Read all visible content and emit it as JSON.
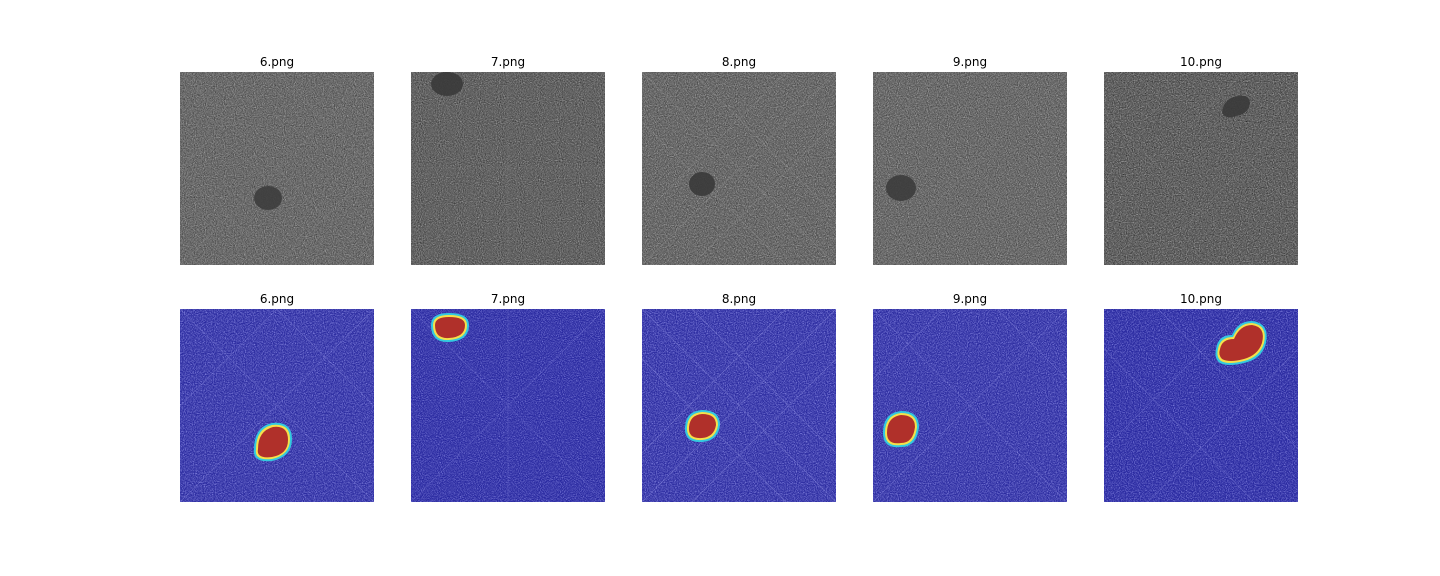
{
  "figure": {
    "rows": [
      {
        "kind": "grayscale-scan",
        "panels": [
          {
            "title": "6.png"
          },
          {
            "title": "7.png"
          },
          {
            "title": "8.png"
          },
          {
            "title": "9.png"
          },
          {
            "title": "10.png"
          }
        ]
      },
      {
        "kind": "jet-overlay-segmentation",
        "panels": [
          {
            "title": "6.png"
          },
          {
            "title": "7.png"
          },
          {
            "title": "8.png"
          },
          {
            "title": "9.png"
          },
          {
            "title": "10.png"
          }
        ]
      }
    ],
    "colors": {
      "background": "#ffffff",
      "gray_dark": "#2a2a2a",
      "gray_light": "#d0d0d0",
      "overlay_dark": "#1f1f8c",
      "overlay_light": "#9c9ce6",
      "lesion_fill": "#b0302a",
      "lesion_edge": "#f5e04a",
      "lesion_rim": "#33c9e0"
    }
  }
}
